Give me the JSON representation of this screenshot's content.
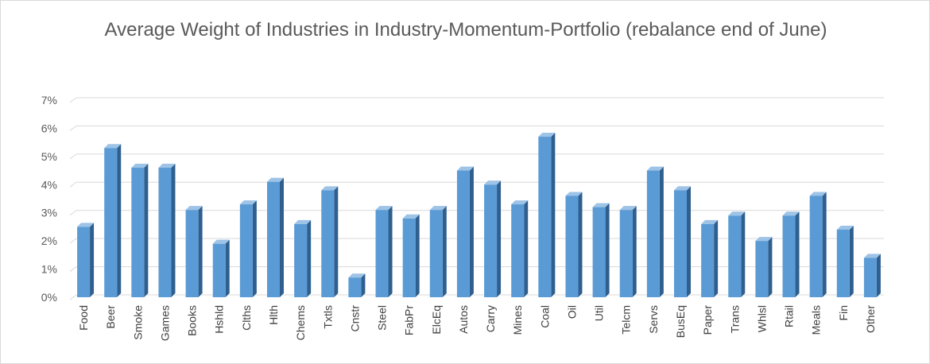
{
  "chart_data": {
    "type": "bar",
    "title": "Average Weight of Industries in Industry-Momentum-Portfolio  (rebalance end of June)",
    "xlabel": "",
    "ylabel": "",
    "ylim": [
      0,
      0.07
    ],
    "yticks": [
      "0%",
      "1%",
      "2%",
      "3%",
      "4%",
      "5%",
      "6%",
      "7%"
    ],
    "categories": [
      "Food",
      "Beer",
      "Smoke",
      "Games",
      "Books",
      "Hshld",
      "Clths",
      "Hlth",
      "Chems",
      "Txtls",
      "Cnstr",
      "Steel",
      "FabPr",
      "ElcEq",
      "Autos",
      "Carry",
      "Mines",
      "Coal",
      "Oil",
      "Util",
      "Telcm",
      "Servs",
      "BusEq",
      "Paper",
      "Trans",
      "Whlsl",
      "Rtail",
      "Meals",
      "Fin",
      "Other"
    ],
    "values": [
      0.025,
      0.053,
      0.046,
      0.046,
      0.031,
      0.019,
      0.033,
      0.041,
      0.026,
      0.038,
      0.007,
      0.031,
      0.028,
      0.031,
      0.045,
      0.04,
      0.033,
      0.057,
      0.036,
      0.032,
      0.031,
      0.045,
      0.038,
      0.026,
      0.029,
      0.02,
      0.029,
      0.036,
      0.024,
      0.014
    ],
    "grid": true,
    "legend": "none",
    "colors": {
      "bar_front": "#5b9bd5",
      "bar_side": "#2f5f8f",
      "bar_top": "#9dc3e6",
      "grid": "#d9d9d9"
    }
  }
}
